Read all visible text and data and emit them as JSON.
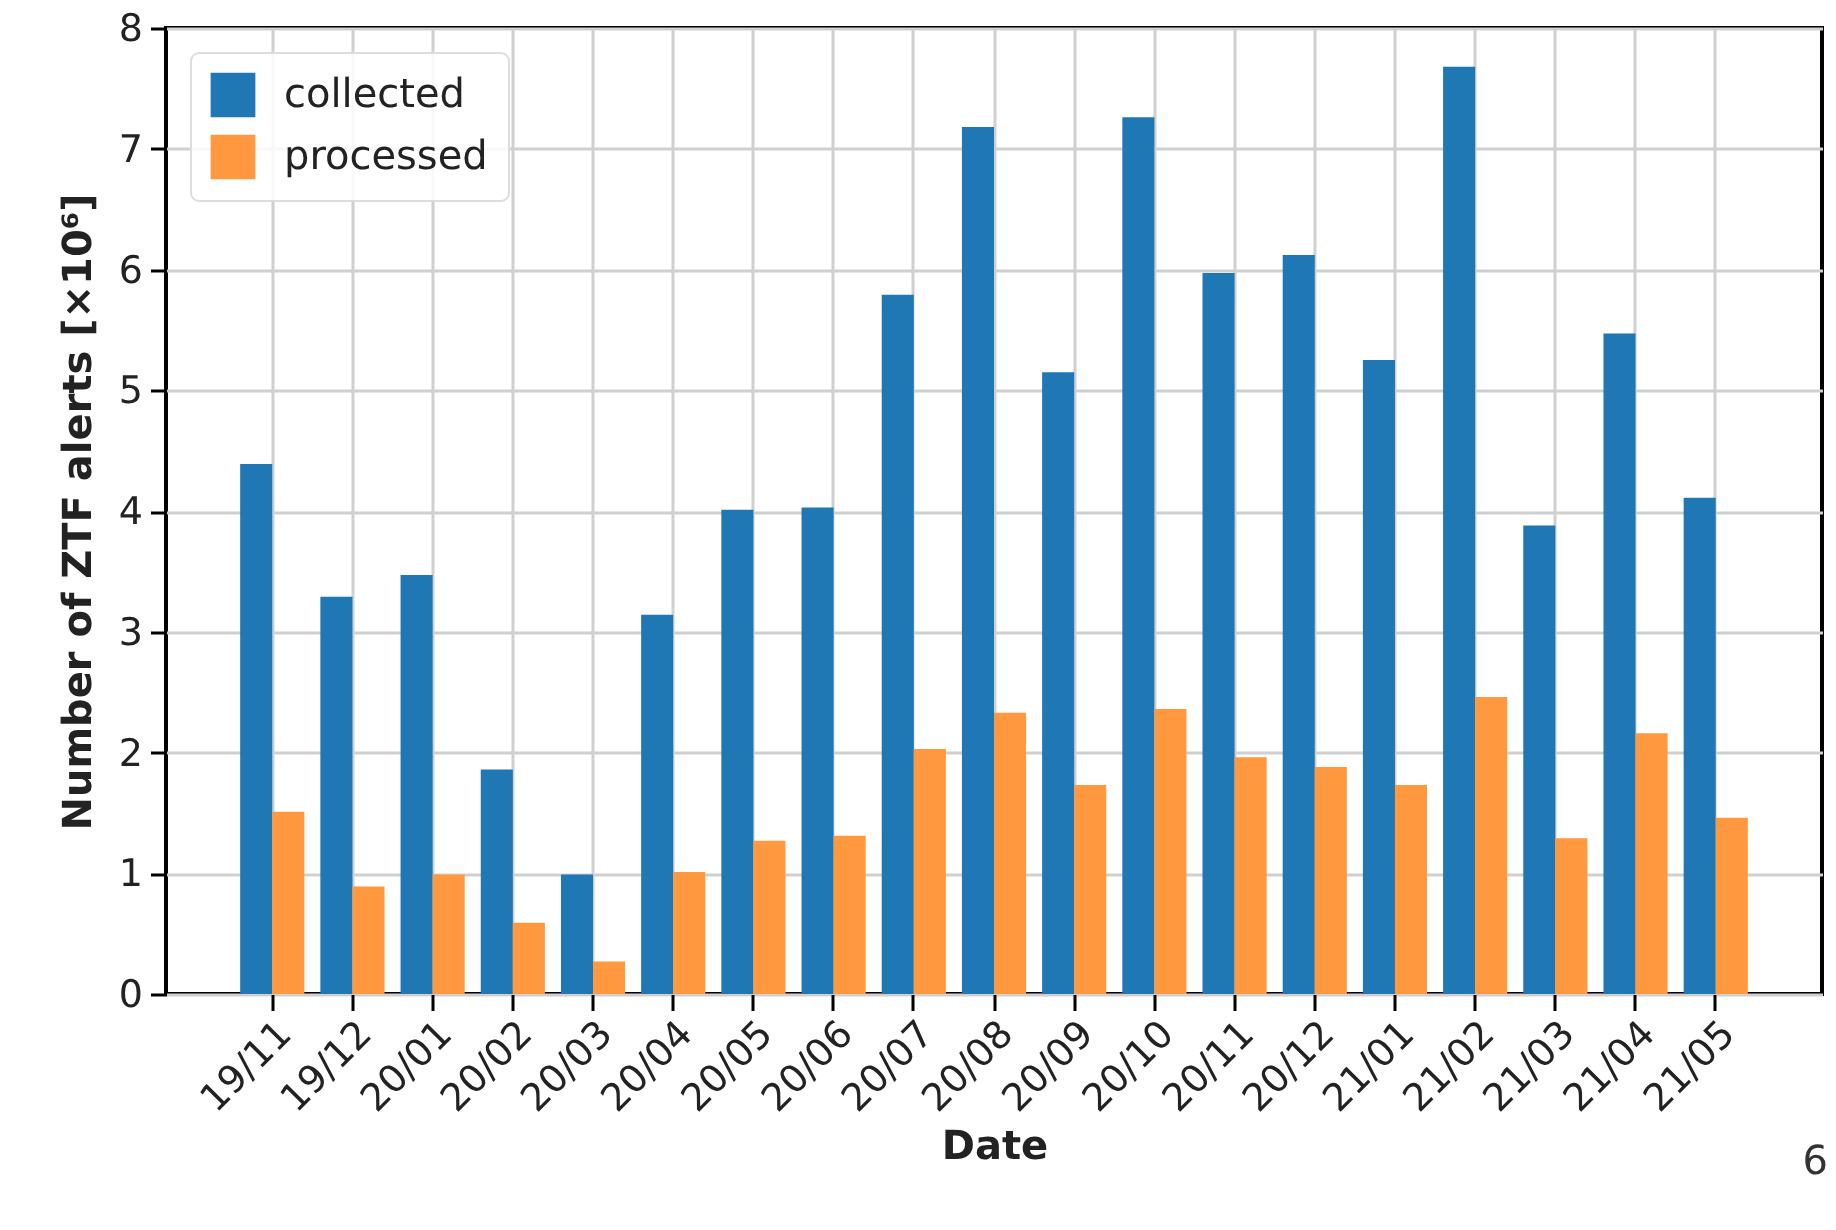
{
  "chart_data": {
    "type": "bar",
    "xlabel": "Date",
    "ylabel": "Number of ZTF alerts [×10⁶]",
    "categories": [
      "19/11",
      "19/12",
      "20/01",
      "20/02",
      "20/03",
      "20/04",
      "20/05",
      "20/06",
      "20/07",
      "20/08",
      "20/09",
      "20/10",
      "20/11",
      "20/12",
      "21/01",
      "21/02",
      "21/03",
      "21/04",
      "21/05"
    ],
    "series": [
      {
        "name": "collected",
        "color": "#1f77b4",
        "values": [
          4.39,
          3.29,
          3.47,
          1.86,
          0.99,
          3.14,
          4.01,
          4.03,
          5.79,
          7.18,
          5.15,
          7.26,
          5.97,
          6.12,
          5.25,
          7.68,
          3.88,
          5.47,
          4.11
        ]
      },
      {
        "name": "processed",
        "color": "#ff983e",
        "values": [
          1.51,
          0.89,
          0.99,
          0.59,
          0.27,
          1.01,
          1.27,
          1.31,
          2.03,
          2.33,
          1.73,
          2.36,
          1.96,
          1.88,
          1.73,
          2.46,
          1.29,
          2.16,
          1.46
        ]
      }
    ],
    "ylim": [
      0,
      8
    ],
    "yticks": [
      0,
      1,
      2,
      3,
      4,
      5,
      6,
      7,
      8
    ],
    "grid": true,
    "legend": "top left",
    "annotations": [
      "6"
    ]
  }
}
